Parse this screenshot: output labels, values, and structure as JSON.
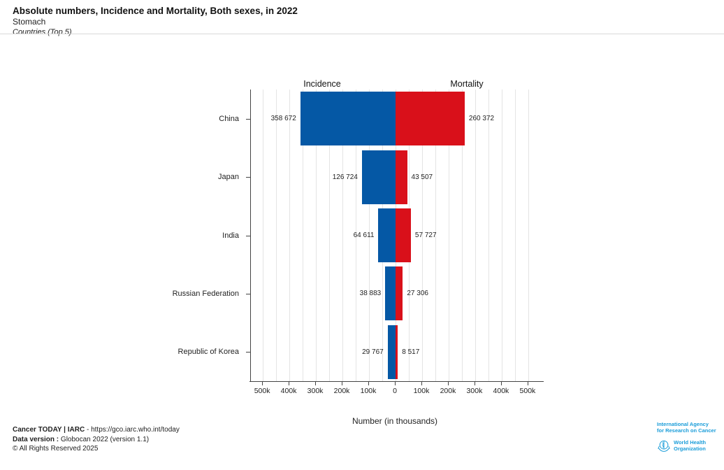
{
  "header": {
    "title": "Absolute numbers, Incidence and Mortality, Both sexes, in 2022",
    "subtitle": "Stomach",
    "filter": "Countries (Top 5)"
  },
  "chart_data": {
    "type": "bar",
    "orientation": "horizontal-diverging",
    "title": "Absolute numbers, Incidence and Mortality, Both sexes, in 2022 — Stomach — Countries (Top 5)",
    "categories": [
      "China",
      "Japan",
      "India",
      "Russian Federation",
      "Republic of Korea"
    ],
    "series": [
      {
        "name": "Incidence",
        "side": "left",
        "color": "#0558a5",
        "values": [
          358672,
          126724,
          64611,
          38883,
          29767
        ],
        "labels": [
          "358 672",
          "126 724",
          "64 611",
          "38 883",
          "29 767"
        ]
      },
      {
        "name": "Mortality",
        "side": "right",
        "color": "#d9101a",
        "values": [
          260372,
          43507,
          57727,
          27306,
          8517
        ],
        "labels": [
          "260 372",
          "43 507",
          "57 727",
          "27 306",
          "8 517"
        ]
      }
    ],
    "xlabel": "Number (in thousands)",
    "x_tick_labels": [
      "500k",
      "400k",
      "300k",
      "200k",
      "100k",
      "0",
      "100k",
      "200k",
      "300k",
      "400k",
      "500k"
    ],
    "x_tick_step_k": 100,
    "x_max_k": 545,
    "grid_step_k": 50,
    "grid": true,
    "legend_position": "top"
  },
  "footer": {
    "line1_bold": "Cancer TODAY | IARC",
    "line1_rest": " - https://gco.iarc.who.int/today",
    "line2_bold": "Data version :",
    "line2_rest": " Globocan 2022 (version 1.1)",
    "line3": "© All Rights Reserved 2025"
  },
  "logo": {
    "iarc_line1": "International Agency",
    "iarc_line2": "for Research on Cancer",
    "who_line1": "World Health",
    "who_line2": "Organization",
    "color": "#1b9dd9"
  }
}
